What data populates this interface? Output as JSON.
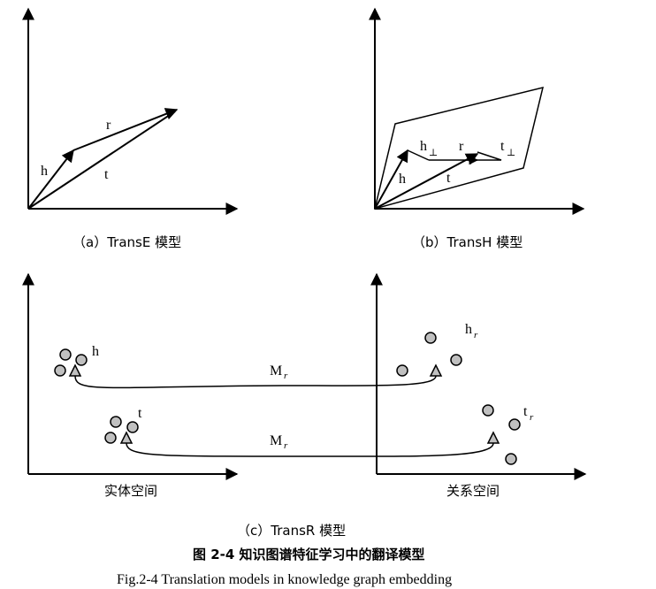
{
  "panel_a": {
    "caption": "（a）TransE 模型",
    "labels": {
      "h": "h",
      "r": "r",
      "t": "t"
    }
  },
  "panel_b": {
    "caption": "（b）TransH 模型",
    "labels": {
      "h": "h",
      "h_perp": "h",
      "perp": "⊥",
      "r": "r",
      "t_perp": "t",
      "t": "t"
    }
  },
  "panel_c": {
    "caption": "（c）TransR 模型",
    "entity_space_label": "实体空间",
    "relation_space_label": "关系空间",
    "labels": {
      "h": "h",
      "t": "t",
      "h_r": "h",
      "t_r": "t",
      "sub_r": "r",
      "M": "M",
      "M_sub": "r"
    }
  },
  "figure_caption_cn": "图 2-4  知识图谱特征学习中的翻译模型",
  "figure_caption_en": "Fig.2-4 Translation models in knowledge graph embedding",
  "colors": {
    "node_fill": "#c0c0c0",
    "stroke": "#000000"
  }
}
